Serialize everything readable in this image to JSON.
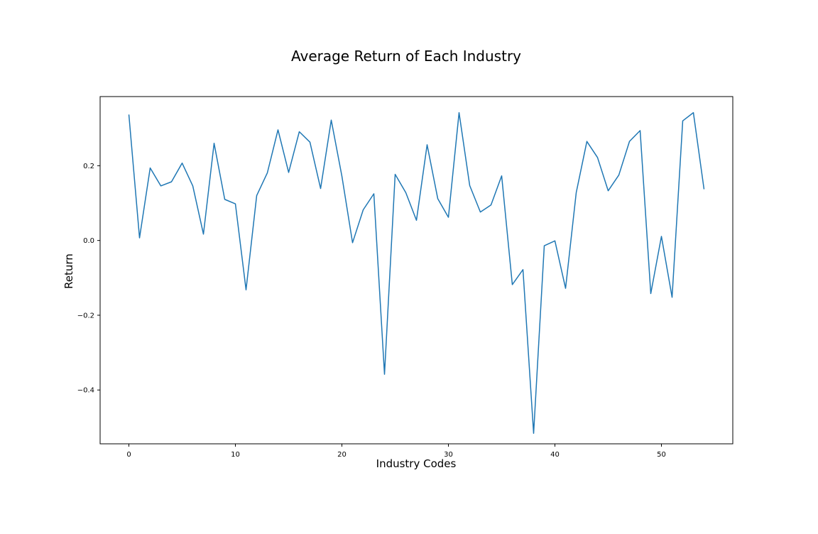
{
  "chart_data": {
    "type": "line",
    "title": "Average Return of Each Industry",
    "xlabel": "Industry Codes",
    "ylabel": "Return",
    "xlim": [
      -2.7,
      56.7
    ],
    "ylim": [
      -0.544,
      0.385
    ],
    "xticks": [
      0,
      10,
      20,
      30,
      40,
      50
    ],
    "yticks": [
      -0.4,
      -0.2,
      0.0,
      0.2
    ],
    "xtick_labels": [
      "0",
      "10",
      "20",
      "30",
      "40",
      "50"
    ],
    "ytick_labels": [
      "−0.4",
      "−0.2",
      "0.0",
      "0.2"
    ],
    "grid": false,
    "color": "#1f77b4",
    "series": [
      {
        "x": [
          0,
          1,
          2,
          3,
          4,
          5,
          6,
          7,
          8,
          9,
          10,
          11,
          12,
          13,
          14,
          15,
          16,
          17,
          18,
          19,
          20,
          21,
          22,
          23,
          24,
          25,
          26,
          27,
          28,
          29,
          30,
          31,
          32,
          33,
          34,
          35,
          36,
          37,
          38,
          39,
          40,
          41,
          42,
          43,
          44,
          45,
          46,
          47,
          48,
          49,
          50,
          51,
          52,
          53,
          54
        ],
        "values": [
          0.337,
          0.007,
          0.194,
          0.146,
          0.157,
          0.207,
          0.146,
          0.017,
          0.26,
          0.11,
          0.098,
          -0.132,
          0.12,
          0.181,
          0.296,
          0.182,
          0.291,
          0.263,
          0.139,
          0.322,
          0.172,
          -0.006,
          0.082,
          0.125,
          -0.358,
          0.177,
          0.128,
          0.054,
          0.256,
          0.112,
          0.062,
          0.342,
          0.147,
          0.076,
          0.095,
          0.173,
          -0.118,
          -0.078,
          -0.516,
          -0.014,
          -0.001,
          -0.128,
          0.128,
          0.265,
          0.222,
          0.133,
          0.175,
          0.265,
          0.294,
          -0.142,
          0.011,
          -0.152,
          0.32,
          0.342,
          0.137
        ]
      }
    ]
  }
}
